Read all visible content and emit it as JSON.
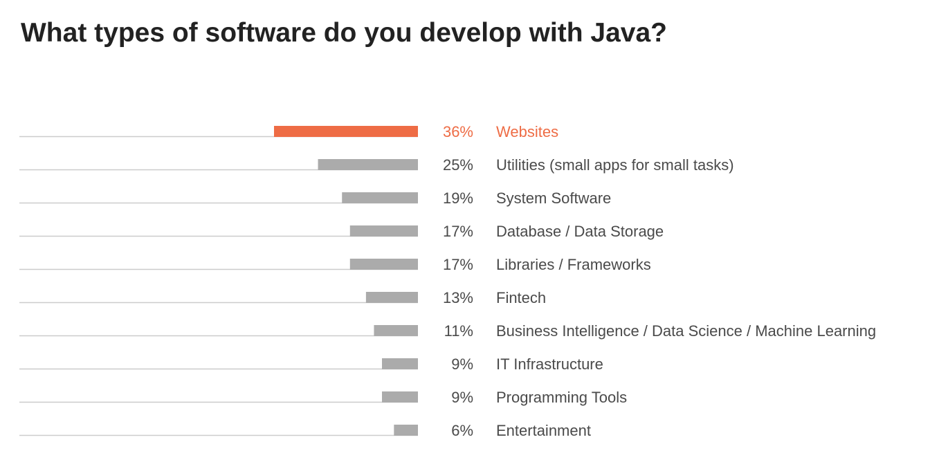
{
  "title": "What types of software do you develop with Java?",
  "colors": {
    "highlight": "#ee6c45",
    "bar": "#ababab",
    "track": "#cccccc",
    "text": "#4a4a4a",
    "title": "#222222"
  },
  "chart_data": {
    "type": "bar",
    "orientation": "horizontal",
    "title": "What types of software do you develop with Java?",
    "xlim": [
      0,
      100
    ],
    "grid": false,
    "legend": "none",
    "categories": [
      "Websites",
      "Utilities (small apps for small tasks)",
      "System Software",
      "Database / Data Storage",
      "Libraries / Frameworks",
      "Fintech",
      "Business Intelligence / Data Science / Machine Learning",
      "IT Infrastructure",
      "Programming Tools",
      "Entertainment"
    ],
    "values": [
      36,
      25,
      19,
      17,
      17,
      13,
      11,
      9,
      9,
      6
    ],
    "value_labels": [
      "36%",
      "25%",
      "19%",
      "17%",
      "17%",
      "13%",
      "11%",
      "9%",
      "9%",
      "6%"
    ],
    "highlighted_index": 0
  }
}
